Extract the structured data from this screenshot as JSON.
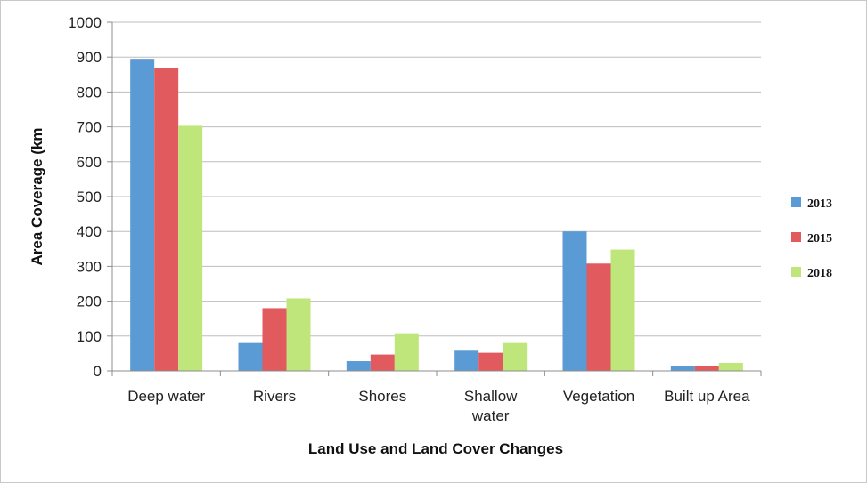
{
  "chart_data": {
    "type": "bar",
    "xlabel": "Land Use and Land Cover Changes",
    "ylabel": "Area Coverage (km",
    "ylim": [
      0,
      1000
    ],
    "yticks": [
      "0",
      "100",
      "200",
      "300",
      "400",
      "500",
      "600",
      "700",
      "800",
      "900",
      "1000"
    ],
    "categories": [
      [
        "Deep water"
      ],
      [
        "Rivers"
      ],
      [
        "Shores"
      ],
      [
        "Shallow",
        "water"
      ],
      [
        "Vegetation"
      ],
      [
        "Built up Area"
      ]
    ],
    "series": [
      {
        "name": "2013",
        "color": "#5b9bd5",
        "values": [
          895,
          80,
          28,
          58,
          400,
          13
        ]
      },
      {
        "name": "2015",
        "color": "#e05a5e",
        "values": [
          868,
          180,
          47,
          52,
          308,
          15
        ]
      },
      {
        "name": "2018",
        "color": "#bfe67a",
        "values": [
          703,
          208,
          108,
          80,
          348,
          23
        ]
      }
    ],
    "grid": true,
    "legend_position": "right"
  }
}
